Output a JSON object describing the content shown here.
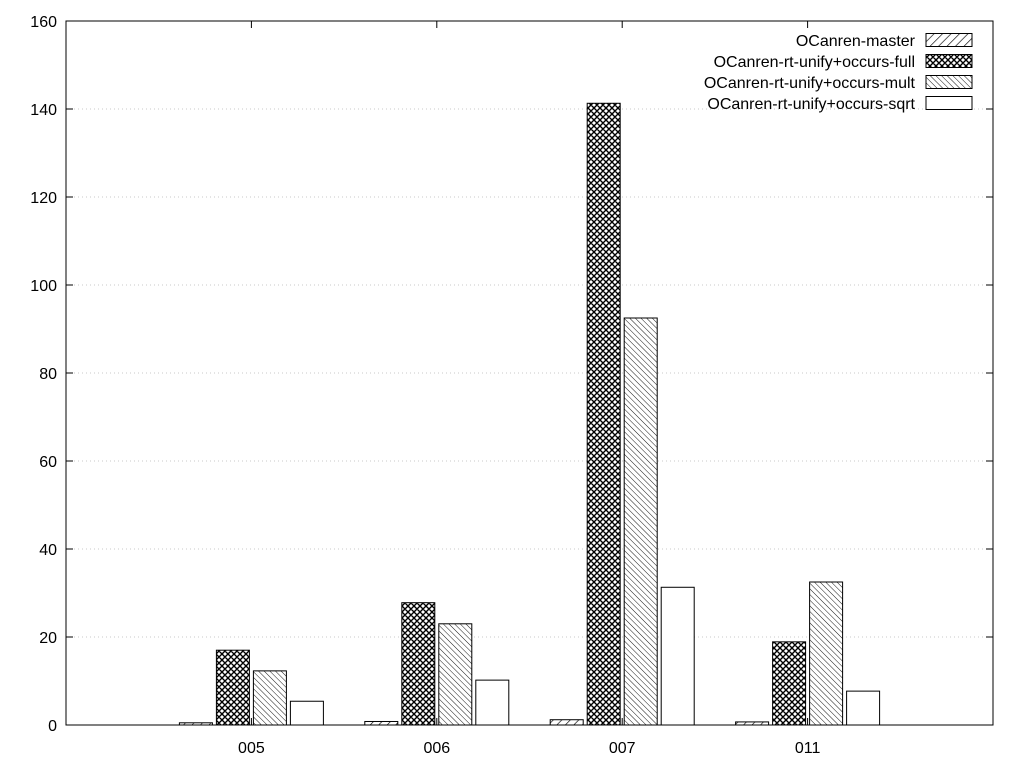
{
  "chart_data": {
    "type": "bar",
    "categories": [
      "005",
      "006",
      "007",
      "011"
    ],
    "series": [
      {
        "name": "OCanren-master",
        "values": [
          0.5,
          0.8,
          1.2,
          0.7
        ],
        "pattern": "diag-sparse"
      },
      {
        "name": "OCanren-rt-unify+occurs-full",
        "values": [
          17.0,
          27.8,
          141.3,
          18.9
        ],
        "pattern": "crosshatch"
      },
      {
        "name": "OCanren-rt-unify+occurs-mult",
        "values": [
          12.3,
          23.0,
          92.5,
          32.5
        ],
        "pattern": "diag-dense"
      },
      {
        "name": "OCanren-rt-unify+occurs-sqrt",
        "values": [
          5.4,
          10.2,
          31.3,
          7.7
        ],
        "pattern": "none"
      }
    ],
    "ylim": [
      0,
      160
    ],
    "yticks": [
      0,
      20,
      40,
      60,
      80,
      100,
      120,
      140,
      160
    ],
    "grid": true,
    "legend_position": "top-right",
    "title": "",
    "xlabel": "",
    "ylabel": "",
    "colors": {
      "stroke": "#000000",
      "fill": "#ffffff",
      "grid": "#c8c8c8"
    }
  }
}
